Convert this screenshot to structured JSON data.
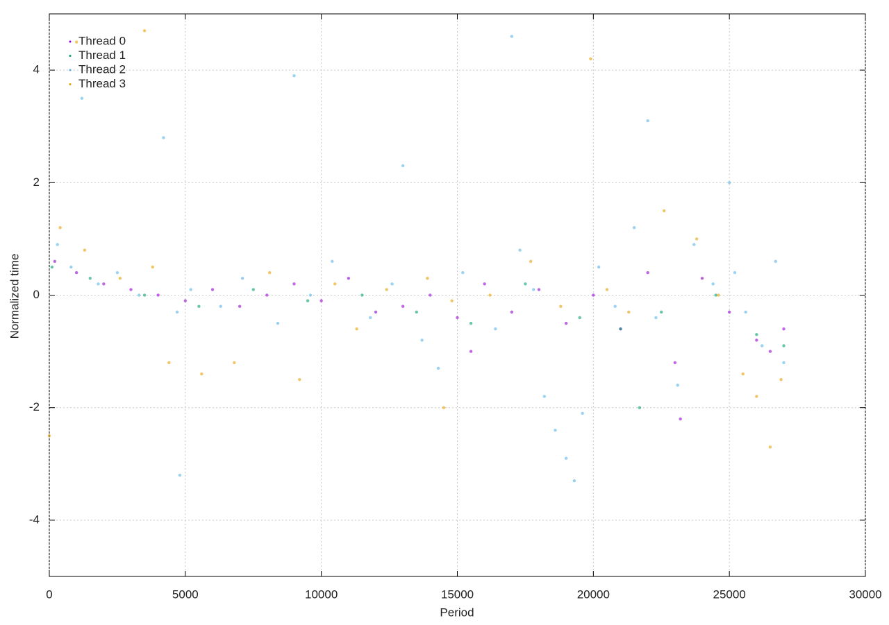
{
  "chart_data": {
    "type": "scatter",
    "x_label": "Period",
    "y_label": "Normalized time",
    "xlim": [
      0,
      30000
    ],
    "xticks": [
      0,
      5000,
      10000,
      15000,
      20000,
      25000,
      30000
    ],
    "ylim": [
      -5,
      5
    ],
    "yticks": [
      -4,
      -2,
      0,
      2,
      4
    ],
    "grid": true,
    "legend": "top-left",
    "series": [
      {
        "name": "Thread 0",
        "color": "#9400d3",
        "x": [
          200,
          1000,
          2000,
          3000,
          4000,
          5000,
          6000,
          7000,
          8000,
          9000,
          10000,
          11000,
          12000,
          13000,
          14000,
          15000,
          15500,
          16000,
          17000,
          18000,
          19000,
          20000,
          21000,
          22000,
          23000,
          23200,
          24000,
          25000,
          26000,
          26500,
          27000
        ],
        "values": [
          0.6,
          0.4,
          0.2,
          0.1,
          0.0,
          -0.1,
          0.1,
          -0.2,
          0.0,
          0.2,
          -0.1,
          0.3,
          -0.3,
          -0.2,
          0.0,
          -0.4,
          -1.0,
          0.2,
          -0.3,
          0.1,
          -0.5,
          0.0,
          -0.6,
          0.4,
          -1.2,
          -2.2,
          0.3,
          -0.3,
          -0.8,
          -1.0,
          -0.6
        ]
      },
      {
        "name": "Thread 1",
        "color": "#009e73",
        "x": [
          100,
          1500,
          3500,
          5500,
          7500,
          9500,
          11500,
          13500,
          15500,
          17500,
          19500,
          21000,
          21700,
          22500,
          24500,
          26000,
          27000
        ],
        "values": [
          0.5,
          0.3,
          0.0,
          -0.2,
          0.1,
          -0.1,
          0.0,
          -0.3,
          -0.5,
          0.2,
          -0.4,
          -0.6,
          -2.0,
          -0.3,
          0.0,
          -0.7,
          -0.9
        ]
      },
      {
        "name": "Thread 2",
        "color": "#56b4e9",
        "x": [
          300,
          800,
          1200,
          1800,
          2500,
          3300,
          4200,
          4700,
          4800,
          5200,
          6300,
          7100,
          8400,
          9000,
          9600,
          10400,
          11800,
          12600,
          13000,
          13700,
          14300,
          15200,
          16400,
          17000,
          17300,
          17800,
          18200,
          18600,
          19000,
          19300,
          19600,
          20200,
          20800,
          21500,
          22000,
          22300,
          23100,
          23700,
          24400,
          25000,
          25200,
          25600,
          26200,
          26700,
          27000
        ],
        "values": [
          0.9,
          0.5,
          3.5,
          0.2,
          0.4,
          0.0,
          2.8,
          -0.3,
          -3.2,
          0.1,
          -0.2,
          0.3,
          -0.5,
          3.9,
          0.0,
          0.6,
          -0.4,
          0.2,
          2.3,
          -0.8,
          -1.3,
          0.4,
          -0.6,
          4.6,
          0.8,
          0.1,
          -1.8,
          -2.4,
          -2.9,
          -3.3,
          -2.1,
          0.5,
          -0.2,
          1.2,
          3.1,
          -0.4,
          -1.6,
          0.9,
          0.2,
          2.0,
          0.4,
          -0.3,
          -0.9,
          0.6,
          -1.2
        ]
      },
      {
        "name": "Thread 3",
        "color": "#e69f00",
        "x": [
          0,
          400,
          1000,
          1300,
          2600,
          3500,
          3800,
          4400,
          5600,
          6800,
          8100,
          9200,
          10500,
          11300,
          12400,
          13900,
          14500,
          14800,
          16200,
          17700,
          18800,
          19900,
          20500,
          21300,
          22600,
          23800,
          24600,
          25500,
          26000,
          26500,
          26900
        ],
        "values": [
          -2.5,
          1.2,
          4.5,
          0.8,
          0.3,
          4.7,
          0.5,
          -1.2,
          -1.4,
          -1.2,
          0.4,
          -1.5,
          0.2,
          -0.6,
          0.1,
          0.3,
          -2.0,
          -0.1,
          0.0,
          0.6,
          -0.2,
          4.2,
          0.1,
          -0.3,
          1.5,
          1.0,
          0.0,
          -1.4,
          -1.8,
          -2.7,
          -1.5
        ]
      }
    ]
  }
}
